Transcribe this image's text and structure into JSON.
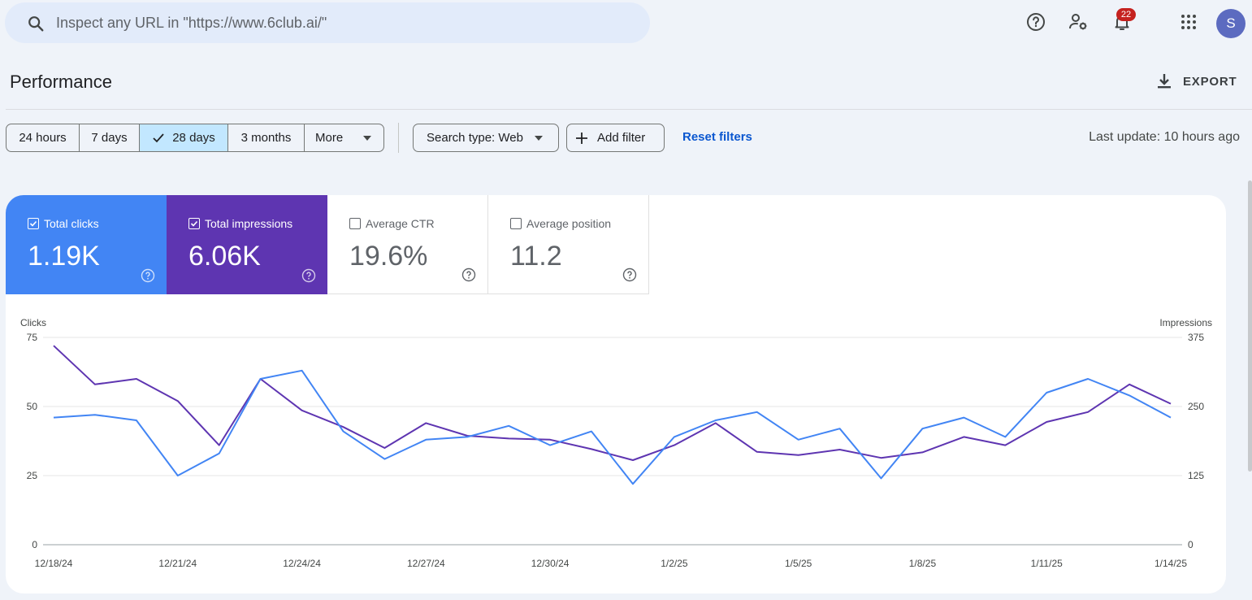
{
  "search": {
    "placeholder": "Inspect any URL in \"https://www.6club.ai/\""
  },
  "header": {
    "notification_count": "22",
    "avatar_letter": "S",
    "icons": [
      "search-icon",
      "help-icon",
      "manage-users-icon",
      "notifications-icon",
      "apps-icon"
    ]
  },
  "page": {
    "title": "Performance",
    "export_label": "EXPORT"
  },
  "filters": {
    "ranges": [
      {
        "label": "24 hours",
        "selected": false
      },
      {
        "label": "7 days",
        "selected": false
      },
      {
        "label": "28 days",
        "selected": true
      },
      {
        "label": "3 months",
        "selected": false
      },
      {
        "label": "More",
        "selected": false
      }
    ],
    "search_type": "Search type: Web",
    "add_filter": "Add filter",
    "reset": "Reset filters",
    "last_update": "Last update: 10 hours ago"
  },
  "metrics": [
    {
      "label": "Total clicks",
      "value": "1.19K",
      "checked": true,
      "color": "#4285f4"
    },
    {
      "label": "Total impressions",
      "value": "6.06K",
      "checked": true,
      "color": "#5e35b1"
    },
    {
      "label": "Average CTR",
      "value": "19.6%",
      "checked": false
    },
    {
      "label": "Average position",
      "value": "11.2",
      "checked": false
    }
  ],
  "chart_data": {
    "type": "line",
    "ylabel_left": "Clicks",
    "ylabel_right": "Impressions",
    "ylim_left": [
      0,
      75
    ],
    "ylim_right": [
      0,
      375
    ],
    "yticks_left": [
      "75",
      "50",
      "25",
      "0"
    ],
    "yticks_right": [
      "375",
      "250",
      "125",
      "0"
    ],
    "x": [
      "12/18/24",
      "12/19/24",
      "12/20/24",
      "12/21/24",
      "12/22/24",
      "12/23/24",
      "12/24/24",
      "12/25/24",
      "12/26/24",
      "12/27/24",
      "12/28/24",
      "12/29/24",
      "12/30/24",
      "12/31/24",
      "1/1/25",
      "1/2/25",
      "1/3/25",
      "1/4/25",
      "1/5/25",
      "1/6/25",
      "1/7/25",
      "1/8/25",
      "1/9/25",
      "1/10/25",
      "1/11/25",
      "1/12/25",
      "1/13/25",
      "1/14/25"
    ],
    "xtick_labels": [
      "12/18/24",
      "12/21/24",
      "12/24/24",
      "12/27/24",
      "12/30/24",
      "1/2/25",
      "1/5/25",
      "1/8/25",
      "1/11/25",
      "1/14/25"
    ],
    "grid": true,
    "series": [
      {
        "name": "Clicks",
        "axis": "left",
        "color": "#4285f4",
        "values": [
          46,
          47,
          45,
          25,
          33,
          60,
          63,
          41,
          31,
          38,
          39,
          43,
          36,
          41,
          22,
          39,
          45,
          48,
          38,
          42,
          24,
          42,
          46,
          39,
          55,
          60,
          54,
          46
        ]
      },
      {
        "name": "Impressions",
        "axis": "right",
        "color": "#5e35b1",
        "values": [
          360,
          290,
          300,
          260,
          180,
          300,
          243,
          213,
          175,
          220,
          197,
          192,
          190,
          173,
          153,
          180,
          220,
          168,
          162,
          172,
          157,
          167,
          195,
          180,
          222,
          240,
          290,
          255
        ]
      }
    ]
  }
}
